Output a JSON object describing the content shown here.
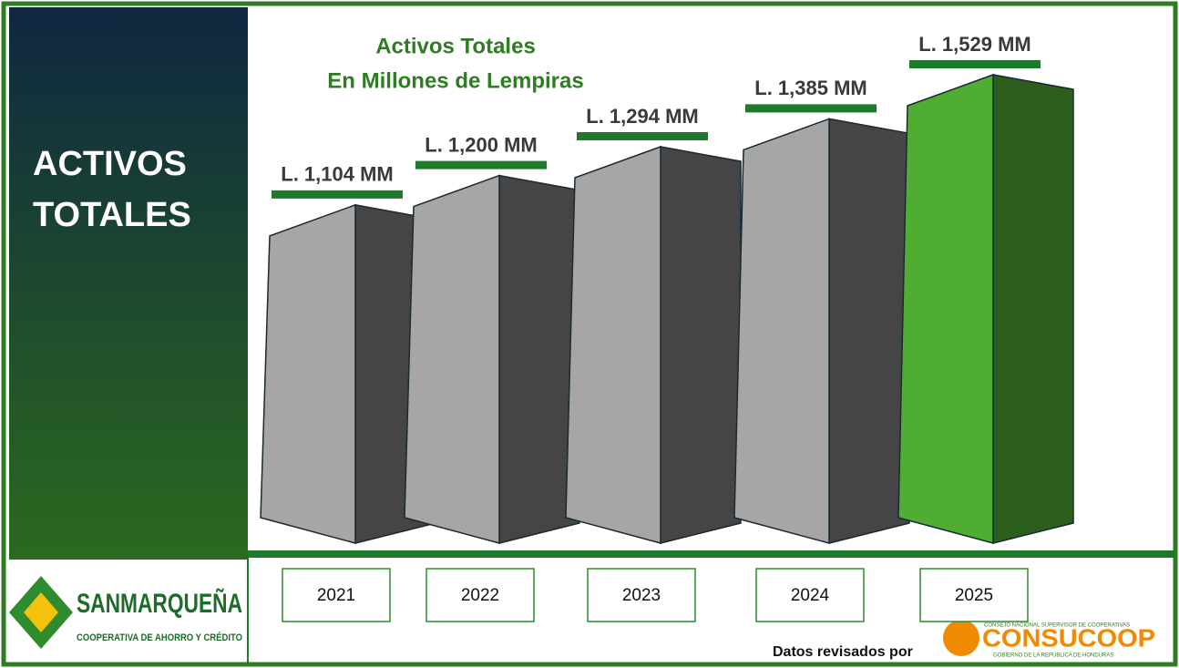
{
  "chart_data": {
    "type": "bar3d",
    "title": "Activos Totales",
    "subtitle": "En Millones de Lempiras",
    "categories": [
      "2021",
      "2022",
      "2023",
      "2024",
      "2025"
    ],
    "values": [
      1104,
      1200,
      1294,
      1385,
      1529
    ],
    "value_labels": [
      "L. 1,104 MM",
      "L. 1,200 MM",
      "L. 1,294 MM",
      "L. 1,385 MM",
      "L. 1,529 MM"
    ],
    "colors": [
      "#a6a6a6",
      "#a6a6a6",
      "#a6a6a6",
      "#a6a6a6",
      "#4fae32"
    ]
  },
  "side_panel": {
    "title_line1": "ACTIVOS",
    "title_line2": "TOTALES"
  },
  "logo": {
    "name": "SANMARQUEÑA",
    "tagline": "COOPERATIVA DE AHORRO Y CRÉDITO"
  },
  "footer": {
    "reviewed_by": "Datos revisados por",
    "org": "CONSUCOOP",
    "org_line1": "CONSEJO NACIONAL SUPERVISOR DE COOPERATIVAS",
    "org_line2": "GOBIERNO DE LA REPÚBLICA DE HONDURAS"
  }
}
